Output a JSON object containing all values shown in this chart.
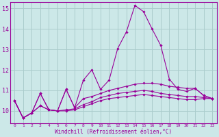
{
  "xlabel": "Windchill (Refroidissement éolien,°C)",
  "bg_color": "#cce8e8",
  "grid_color": "#aacccc",
  "line_color": "#990099",
  "xlim": [
    -0.5,
    23.5
  ],
  "ylim": [
    9.4,
    15.3
  ],
  "yticks": [
    10,
    11,
    12,
    13,
    14,
    15
  ],
  "xticks": [
    0,
    1,
    2,
    3,
    4,
    5,
    6,
    7,
    8,
    9,
    10,
    11,
    12,
    13,
    14,
    15,
    16,
    17,
    18,
    19,
    20,
    21,
    22,
    23
  ],
  "series": [
    [
      10.5,
      9.65,
      9.9,
      10.85,
      10.05,
      10.0,
      11.05,
      10.15,
      11.5,
      12.0,
      11.05,
      11.5,
      13.05,
      13.85,
      15.15,
      14.85,
      14.0,
      13.2,
      11.55,
      11.05,
      10.95,
      11.1,
      10.75,
      10.6
    ],
    [
      10.5,
      9.65,
      9.9,
      10.85,
      10.05,
      10.0,
      11.05,
      10.15,
      10.6,
      10.7,
      10.85,
      11.0,
      11.1,
      11.2,
      11.3,
      11.35,
      11.35,
      11.3,
      11.2,
      11.15,
      11.1,
      11.1,
      10.75,
      10.6
    ],
    [
      10.5,
      9.65,
      9.9,
      10.25,
      10.05,
      10.0,
      10.05,
      10.1,
      10.3,
      10.45,
      10.65,
      10.75,
      10.85,
      10.9,
      10.95,
      11.0,
      10.95,
      10.85,
      10.8,
      10.75,
      10.7,
      10.7,
      10.65,
      10.6
    ],
    [
      10.5,
      9.65,
      9.9,
      10.25,
      10.05,
      10.0,
      10.0,
      10.05,
      10.2,
      10.35,
      10.5,
      10.6,
      10.65,
      10.7,
      10.75,
      10.8,
      10.75,
      10.7,
      10.65,
      10.6,
      10.55,
      10.55,
      10.6,
      10.6
    ]
  ]
}
